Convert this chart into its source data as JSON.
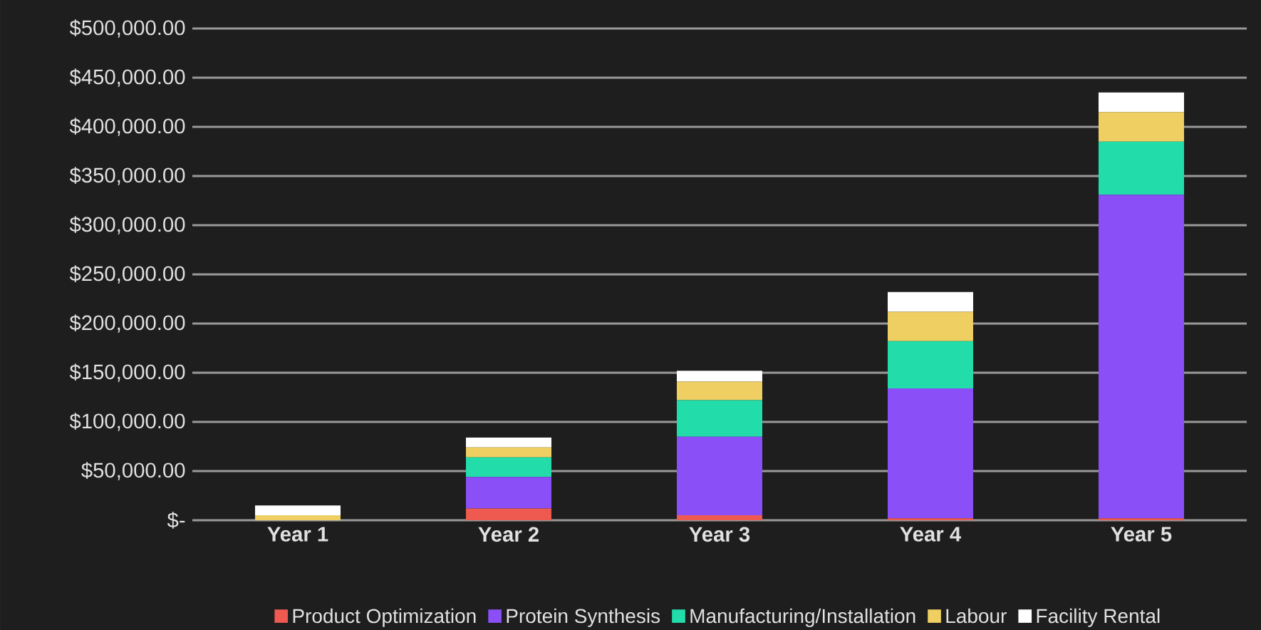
{
  "chart_data": {
    "type": "bar",
    "stacked": true,
    "categories": [
      "Year 1",
      "Year 2",
      "Year 3",
      "Year 4",
      "Year 5"
    ],
    "series": [
      {
        "name": "Product Optimization",
        "color": "#ef5a50",
        "values": [
          0,
          12000,
          5000,
          2000,
          2000
        ]
      },
      {
        "name": "Protein Synthesis",
        "color": "#8a4ff7",
        "values": [
          0,
          32000,
          80000,
          132000,
          329000
        ]
      },
      {
        "name": "Manufacturing/Installation",
        "color": "#22ddaa",
        "values": [
          0,
          20000,
          37000,
          48000,
          54000
        ]
      },
      {
        "name": "Labour",
        "color": "#efcf62",
        "values": [
          5000,
          10000,
          19000,
          30000,
          30000
        ]
      },
      {
        "name": "Facility Rental",
        "color": "#ffffff",
        "values": [
          10000,
          10000,
          11000,
          20000,
          20000
        ]
      }
    ],
    "ylim": [
      0,
      500000
    ],
    "yticks": [
      {
        "value": 0,
        "label": "$-"
      },
      {
        "value": 50000,
        "label": "$50,000.00"
      },
      {
        "value": 100000,
        "label": "$100,000.00"
      },
      {
        "value": 150000,
        "label": "$150,000.00"
      },
      {
        "value": 200000,
        "label": "$200,000.00"
      },
      {
        "value": 250000,
        "label": "$250,000.00"
      },
      {
        "value": 300000,
        "label": "$300,000.00"
      },
      {
        "value": 350000,
        "label": "$350,000.00"
      },
      {
        "value": 400000,
        "label": "$400,000.00"
      },
      {
        "value": 450000,
        "label": "$450,000.00"
      },
      {
        "value": 500000,
        "label": "$500,000.00"
      }
    ],
    "grid": "y",
    "legend": "bottom"
  }
}
